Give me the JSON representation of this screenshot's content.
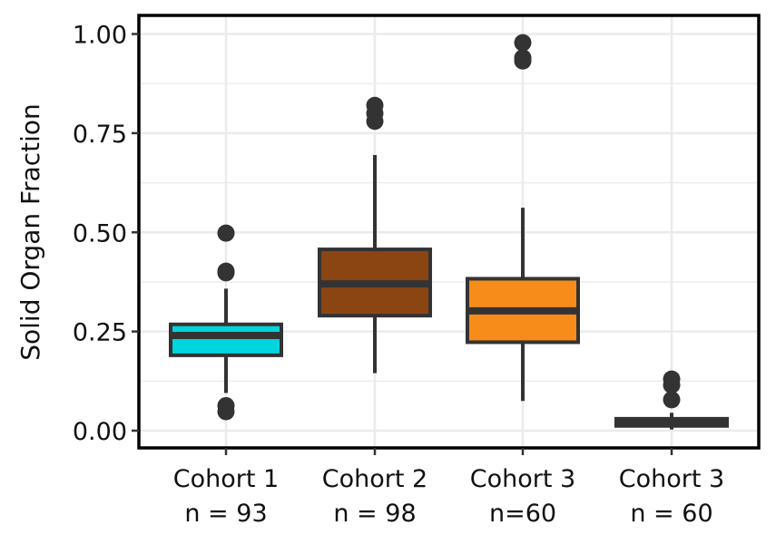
{
  "chart_data": {
    "type": "boxplot",
    "title": "",
    "xlabel": "",
    "ylabel": "Solid Organ Fraction",
    "ylim": [
      -0.045,
      1.05
    ],
    "yticks": [
      0.0,
      0.25,
      0.5,
      0.75,
      1.0
    ],
    "ytick_labels": [
      "0.00",
      "0.25",
      "0.50",
      "0.75",
      "1.00"
    ],
    "grid": true,
    "legend": "none",
    "categories": [
      {
        "line1": "Cohort 1",
        "line2": "n = 93"
      },
      {
        "line1": "Cohort 2",
        "line2": "n = 98"
      },
      {
        "line1": "Cohort 3",
        "line2": "n=60"
      },
      {
        "line1": "Cohort 3",
        "line2": "n = 60"
      }
    ],
    "boxes": [
      {
        "color": "#00D4DC",
        "whisker_low": 0.095,
        "q1": 0.19,
        "median": 0.24,
        "q3": 0.268,
        "whisker_high": 0.358,
        "outliers": [
          0.498,
          0.402,
          0.398,
          0.063,
          0.048
        ]
      },
      {
        "color": "#8B4513",
        "whisker_low": 0.145,
        "q1": 0.29,
        "median": 0.37,
        "q3": 0.457,
        "whisker_high": 0.695,
        "outliers": [
          0.82,
          0.8,
          0.78
        ]
      },
      {
        "color": "#F78C1B",
        "whisker_low": 0.075,
        "q1": 0.223,
        "median": 0.302,
        "q3": 0.383,
        "whisker_high": 0.562,
        "outliers": [
          0.978,
          0.94,
          0.932
        ]
      },
      {
        "color": "#333333",
        "whisker_low": 0.003,
        "q1": 0.012,
        "median": 0.02,
        "q3": 0.03,
        "whisker_high": 0.045,
        "outliers": [
          0.13,
          0.115,
          0.078
        ]
      }
    ],
    "colors": {
      "grid": "#EBEBEB",
      "frame": "#000000",
      "box_border": "#333333",
      "outlier": "#333333"
    }
  }
}
